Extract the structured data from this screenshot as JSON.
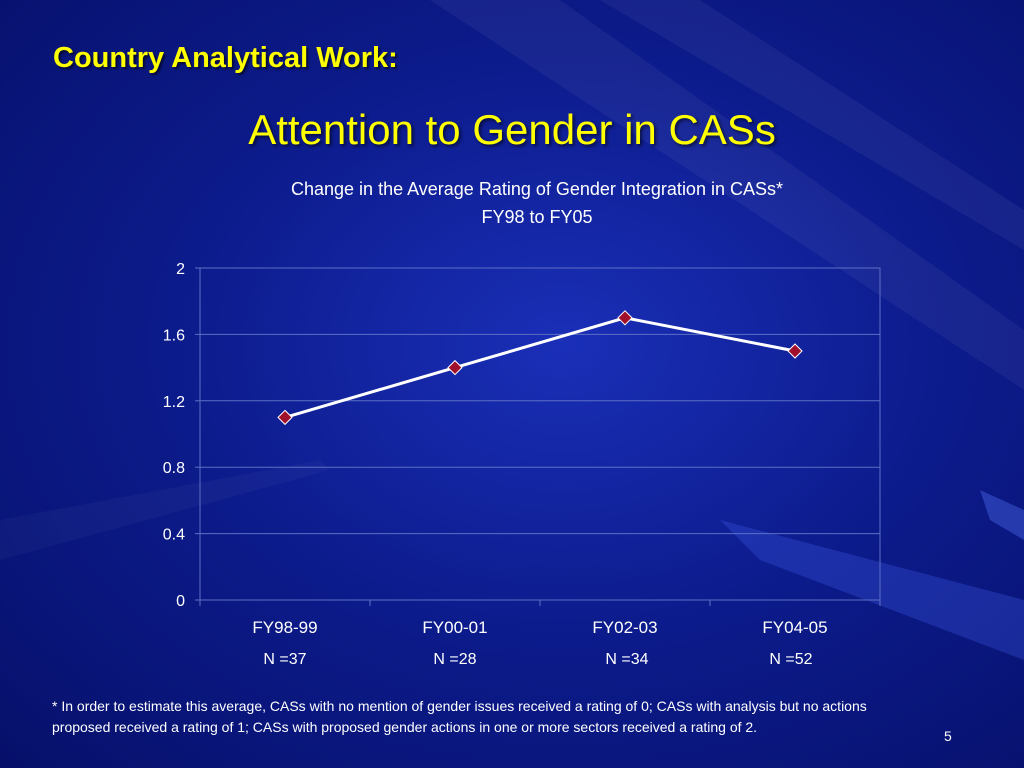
{
  "slide": {
    "heading": "Country Analytical Work:",
    "title": "Attention to Gender in CASs",
    "footnote": "* In order to estimate this average, CASs with no mention of gender issues received a rating of 0; CASs with analysis but no actions proposed received a rating of 1; CASs with proposed gender actions in one or more sectors received a rating of 2.",
    "page_number": "5"
  },
  "colors": {
    "background": "#0d1c8e",
    "heading": "#ffff00",
    "line": "#ffffff",
    "marker": "#a0102a"
  },
  "chart_data": {
    "type": "line",
    "title": "Change in the Average Rating of Gender Integration in CASs*",
    "subtitle": "FY98 to FY05",
    "categories": [
      "FY98-99",
      "FY00-01",
      "FY02-03",
      "FY04-05"
    ],
    "category_sublabels": [
      "N =37",
      "N =28",
      "N =34",
      "N =52"
    ],
    "series": [
      {
        "values": [
          1.1,
          1.4,
          1.7,
          1.5
        ]
      }
    ],
    "ylim": [
      0,
      2
    ],
    "yticks": [
      "0",
      "0.4",
      "0.8",
      "1.2",
      "1.6",
      "2"
    ],
    "grid": true,
    "legend": "none"
  }
}
